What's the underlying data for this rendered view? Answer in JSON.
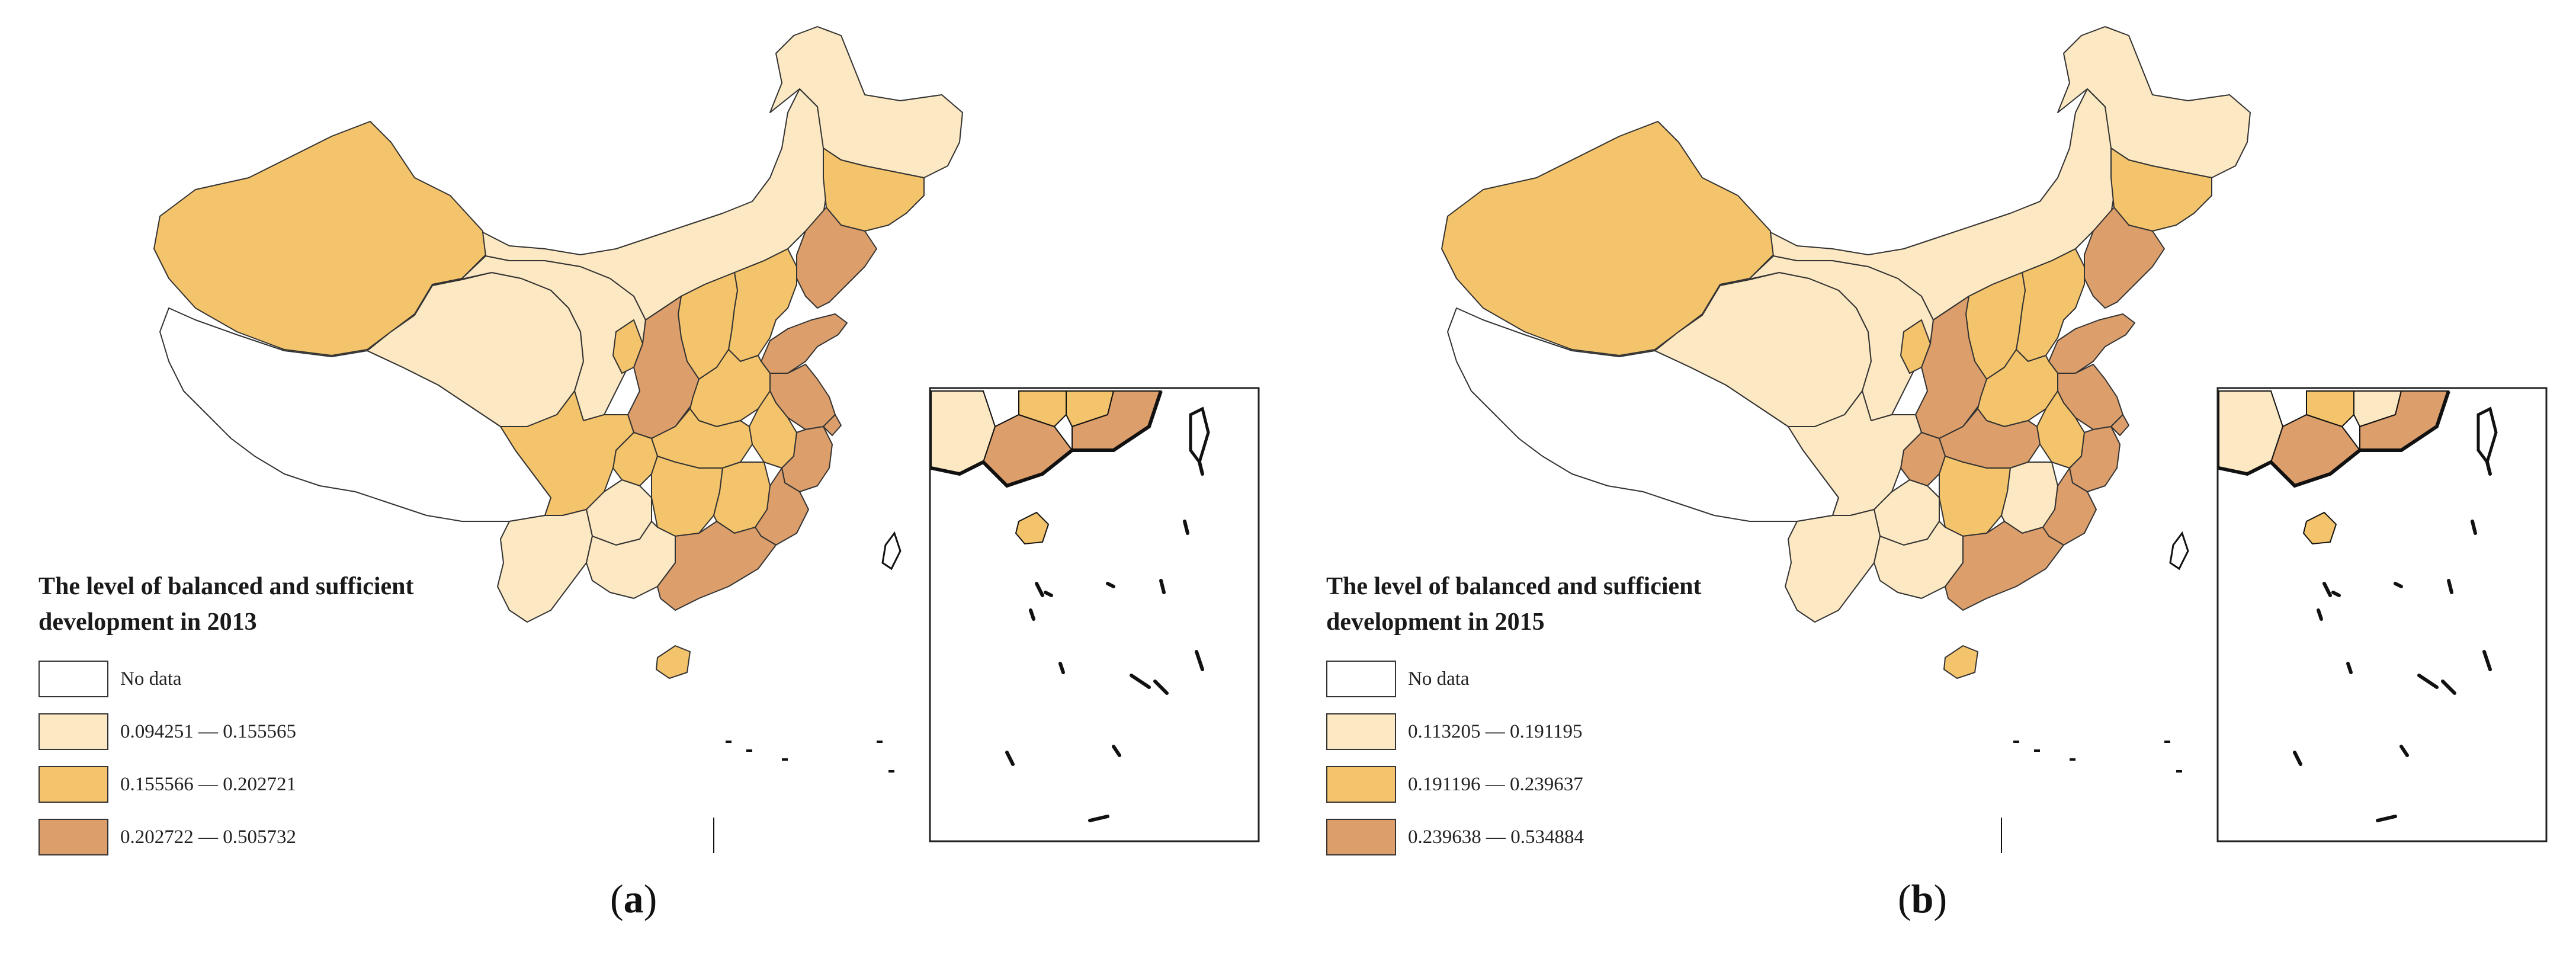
{
  "colors": {
    "no_data": "#ffffff",
    "low": "#fce8c2",
    "mid": "#f4c46c",
    "high": "#dc9f6c",
    "border": "#333333"
  },
  "maps": [
    {
      "id": "a",
      "legend_title": "The level of balanced and sufficient\ndevelopment in 2013",
      "legend": [
        {
          "label": "No data",
          "class": "none"
        },
        {
          "label": "0.094251 — 0.155565",
          "class": "low"
        },
        {
          "label": "0.155566 — 0.202721",
          "class": "mid"
        },
        {
          "label": "0.202722 — 0.505732",
          "class": "high"
        }
      ],
      "caption_open": "(",
      "caption_letter": "a",
      "caption_close": ")",
      "regions": {
        "Xinjiang": "mid",
        "Tibet": "none",
        "Qinghai": "low",
        "Gansu": "low",
        "Inner Mongolia": "low",
        "Heilongjiang": "low",
        "Jilin": "mid",
        "Liaoning": "high",
        "Beijing": "high",
        "Tianjin": "high",
        "Hebei": "mid",
        "Shandong": "high",
        "Shanxi": "mid",
        "Shaanxi": "high",
        "Ningxia": "mid",
        "Henan": "mid",
        "Jiangsu": "high",
        "Anhui": "mid",
        "Hubei": "mid",
        "Chongqing": "mid",
        "Sichuan": "mid",
        "Guizhou": "low",
        "Yunnan": "low",
        "Hunan": "mid",
        "Jiangxi": "mid",
        "Zhejiang": "high",
        "Shanghai": "high",
        "Fujian": "high",
        "Guangxi": "low",
        "Guangdong": "high",
        "Hainan": "mid"
      }
    },
    {
      "id": "b",
      "legend_title": "The level of balanced and sufficient\ndevelopment in 2015",
      "legend": [
        {
          "label": "No data",
          "class": "none"
        },
        {
          "label": "0.113205 — 0.191195",
          "class": "low"
        },
        {
          "label": "0.191196 — 0.239637",
          "class": "mid"
        },
        {
          "label": "0.239638 — 0.534884",
          "class": "high"
        }
      ],
      "caption_open": "(",
      "caption_letter": "b",
      "caption_close": ")",
      "regions": {
        "Xinjiang": "mid",
        "Tibet": "none",
        "Qinghai": "low",
        "Gansu": "low",
        "Inner Mongolia": "low",
        "Heilongjiang": "low",
        "Jilin": "mid",
        "Liaoning": "high",
        "Beijing": "high",
        "Tianjin": "high",
        "Hebei": "mid",
        "Shandong": "high",
        "Shanxi": "mid",
        "Shaanxi": "high",
        "Ningxia": "mid",
        "Henan": "mid",
        "Jiangsu": "high",
        "Anhui": "mid",
        "Hubei": "high",
        "Chongqing": "high",
        "Sichuan": "low",
        "Guizhou": "low",
        "Yunnan": "low",
        "Hunan": "mid",
        "Jiangxi": "low",
        "Zhejiang": "high",
        "Shanghai": "high",
        "Fujian": "high",
        "Guangxi": "low",
        "Guangdong": "high",
        "Hainan": "mid"
      }
    }
  ]
}
